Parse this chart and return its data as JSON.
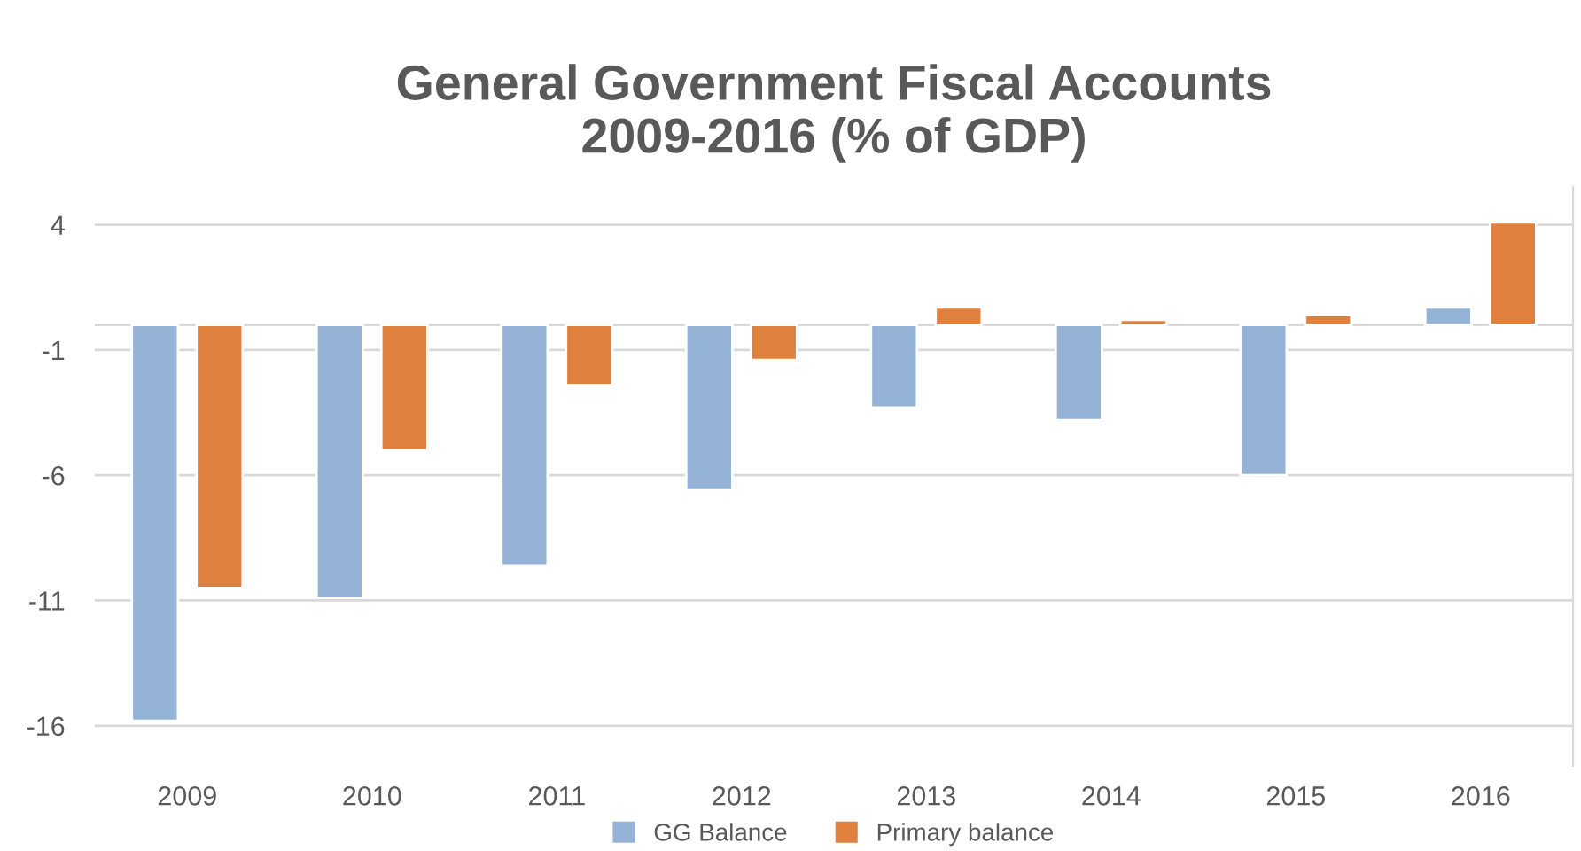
{
  "chart_data": {
    "type": "bar",
    "title": "General Government Fiscal Accounts\n2009-2016 (% of GDP)",
    "categories": [
      "2009",
      "2010",
      "2011",
      "2012",
      "2013",
      "2014",
      "2015",
      "2016"
    ],
    "series": [
      {
        "name": "GG Balance",
        "color": "#95b3d7",
        "values": [
          -15.8,
          -10.9,
          -9.6,
          -6.6,
          -3.3,
          -3.8,
          -6.0,
          0.7
        ]
      },
      {
        "name": "Primary balance",
        "color": "#e0803f",
        "values": [
          -10.5,
          -5.0,
          -2.4,
          -1.4,
          0.7,
          0.2,
          0.4,
          4.1
        ]
      }
    ],
    "ylim": [
      -17.6,
      5.5
    ],
    "yticks": [
      4,
      -1,
      -6,
      -11,
      -16
    ],
    "grid": "y",
    "legend": "bottom"
  }
}
